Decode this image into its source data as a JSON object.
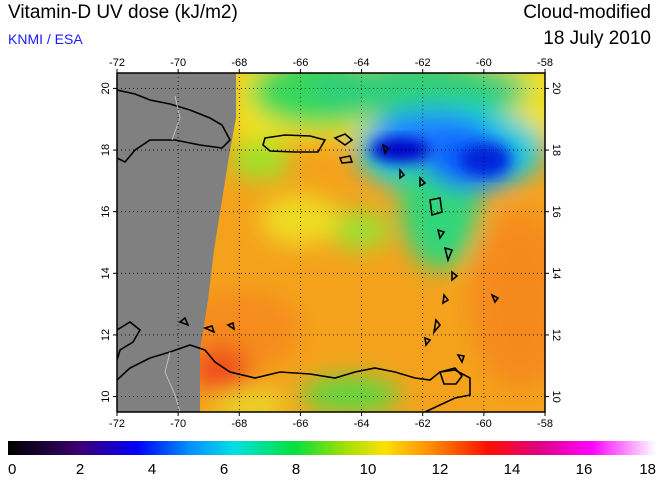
{
  "header": {
    "title": "Vitamin-D UV dose (kJ/m2)",
    "source": "KNMI / ESA",
    "product": "Cloud-modified",
    "date": "18 July 2010"
  },
  "map": {
    "lon_ticks": [
      "-72",
      "-70",
      "-68",
      "-66",
      "-64",
      "-62",
      "-60",
      "-58"
    ],
    "lat_ticks": [
      "10",
      "12",
      "14",
      "16",
      "18",
      "20"
    ],
    "lon_range": [
      -72,
      -58
    ],
    "lat_range": [
      9.5,
      20.5
    ],
    "no_data_color": "#808080"
  },
  "colorbar": {
    "labels": [
      "0",
      "2",
      "4",
      "6",
      "8",
      "10",
      "12",
      "14",
      "16",
      "18"
    ],
    "range": [
      0,
      18
    ]
  }
}
